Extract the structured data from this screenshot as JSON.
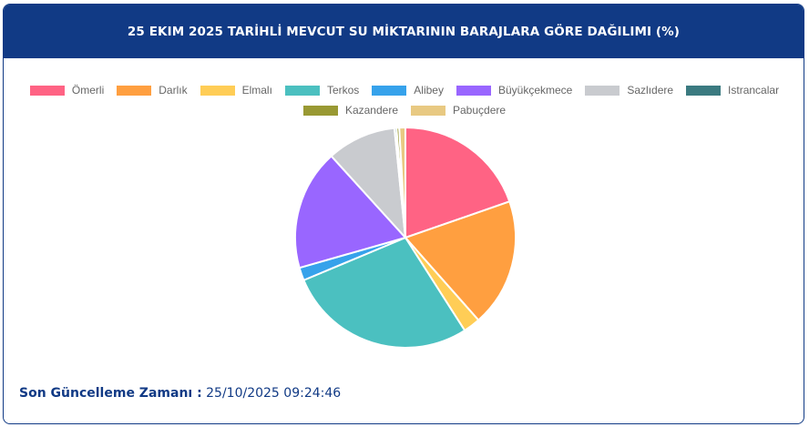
{
  "header": {
    "title": "25 EKIM 2025 TARİHLİ MEVCUT SU MİKTARININ BARAJLARA GÖRE DAĞILIMI (%)"
  },
  "footer": {
    "label": "Son Güncelleme Zamanı :",
    "value": "25/10/2025 09:24:46"
  },
  "chart_data": {
    "type": "pie",
    "title": "25 EKIM 2025 TARİHLİ MEVCUT SU MİKTARININ BARAJLARA GÖRE DAĞILIMI (%)",
    "legend_position": "top",
    "categories": [
      "Ömerli",
      "Darlık",
      "Elmalı",
      "Terkos",
      "Alibey",
      "Büyükçekmece",
      "Sazlıdere",
      "Istrancalar",
      "Kazandere",
      "Pabuçdere"
    ],
    "values": [
      19.8,
      18.9,
      2.5,
      27.9,
      1.9,
      17.8,
      10.2,
      0.3,
      0.4,
      0.9
    ],
    "colors": [
      "#ff6384",
      "#ff9f40",
      "#ffcd56",
      "#4bc0c0",
      "#36a2eb",
      "#9966ff",
      "#c9cbcf",
      "#3b7a80",
      "#999933",
      "#e8c982"
    ]
  }
}
